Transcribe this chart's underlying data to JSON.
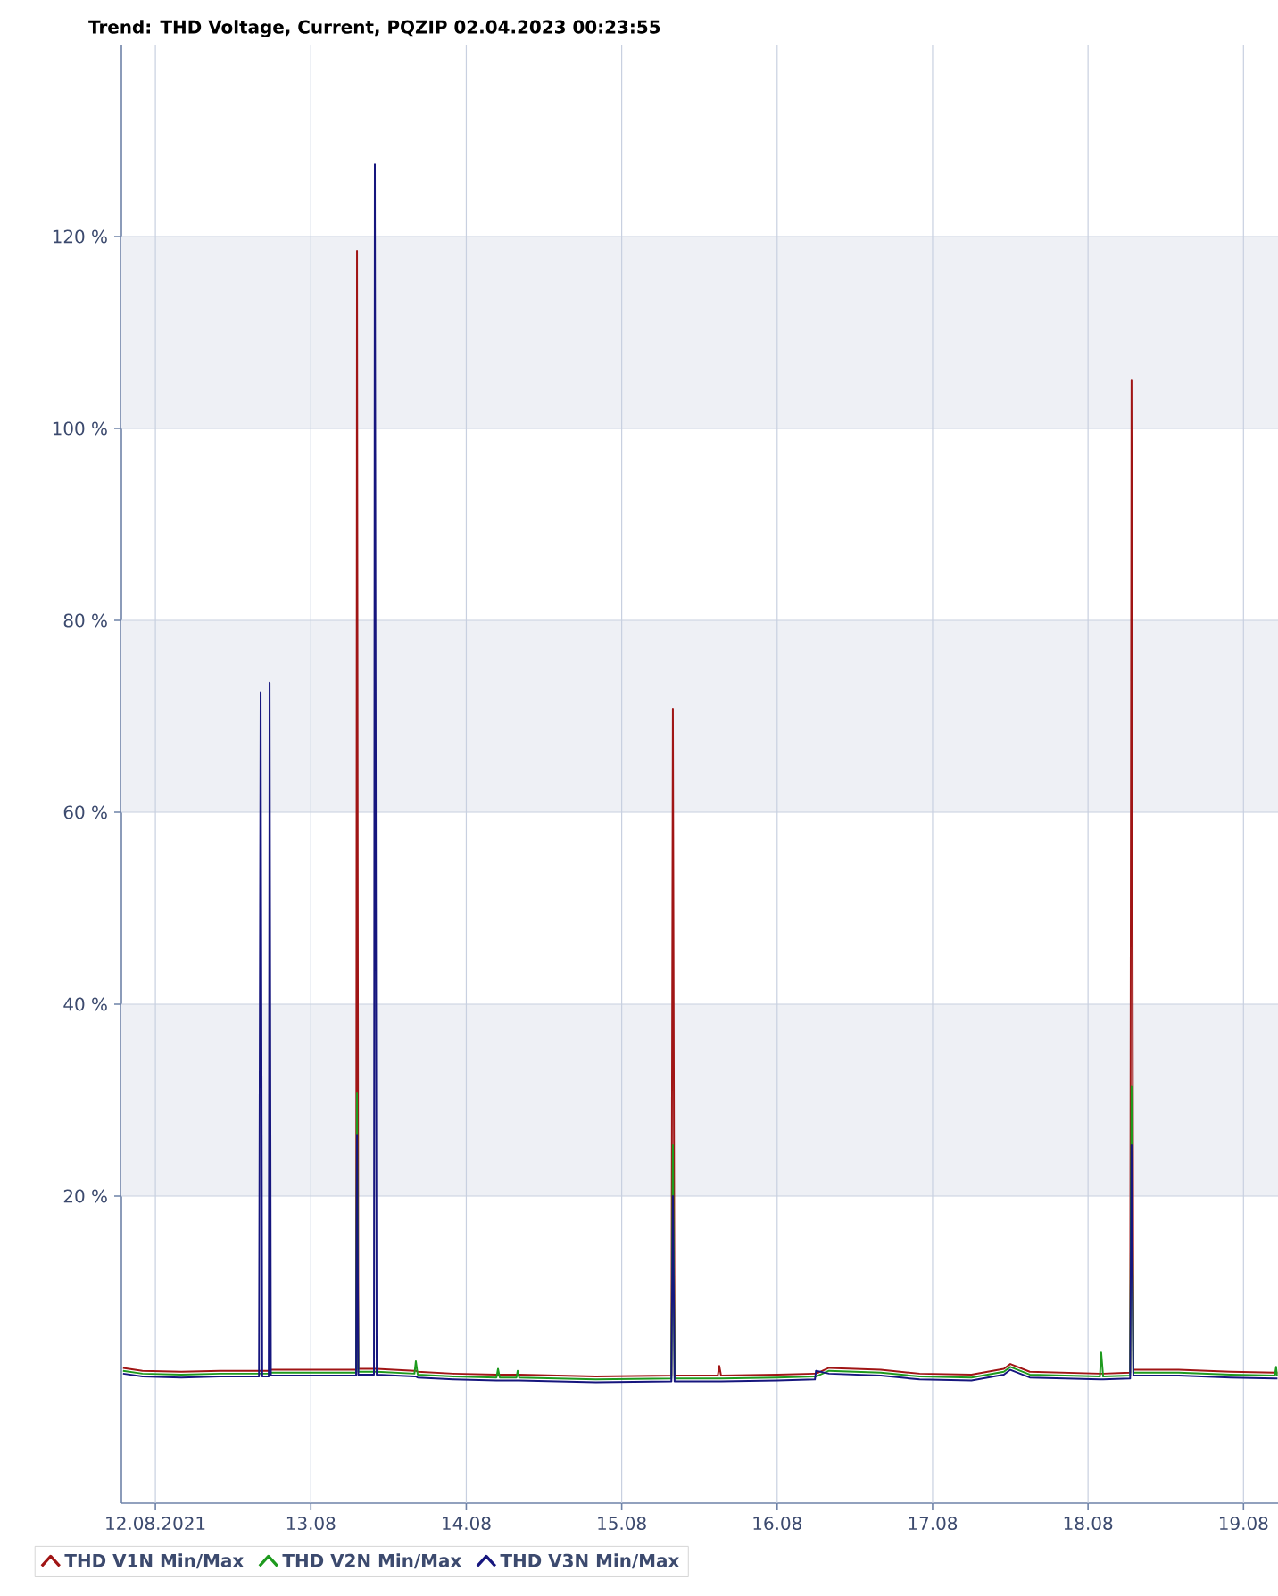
{
  "chart_data": {
    "type": "line",
    "title": "Trend: THD Voltage, Current, PQZIP 02.04.2023 00:23:55",
    "x": [
      "2021-08-11T19:00",
      "2021-08-11T22:00",
      "2021-08-12T04:00",
      "2021-08-12T10:00",
      "2021-08-12T16:00",
      "2021-08-12T16:15",
      "2021-08-12T16:30",
      "2021-08-12T17:30",
      "2021-08-12T17:38",
      "2021-08-12T17:50",
      "2021-08-13T04:00",
      "2021-08-13T07:00",
      "2021-08-13T07:08",
      "2021-08-13T07:20",
      "2021-08-13T09:45",
      "2021-08-13T09:53",
      "2021-08-13T10:10",
      "2021-08-13T16:00",
      "2021-08-13T16:13",
      "2021-08-13T16:30",
      "2021-08-13T22:00",
      "2021-08-14T04:40",
      "2021-08-14T04:54",
      "2021-08-14T05:10",
      "2021-08-14T07:45",
      "2021-08-14T07:56",
      "2021-08-14T08:10",
      "2021-08-14T20:00",
      "2021-08-15T07:40",
      "2021-08-15T07:54",
      "2021-08-15T08:10",
      "2021-08-15T14:50",
      "2021-08-15T15:04",
      "2021-08-15T15:20",
      "2021-08-16T00:00",
      "2021-08-16T05:50",
      "2021-08-16T06:00",
      "2021-08-16T08:00",
      "2021-08-16T16:00",
      "2021-08-16T22:00",
      "2021-08-17T06:00",
      "2021-08-17T11:00",
      "2021-08-17T12:00",
      "2021-08-17T15:00",
      "2021-08-18T01:50",
      "2021-08-18T02:02",
      "2021-08-18T02:20",
      "2021-08-18T06:30",
      "2021-08-18T06:43",
      "2021-08-18T07:00",
      "2021-08-18T14:00",
      "2021-08-18T22:00",
      "2021-08-19T04:50",
      "2021-08-19T05:02",
      "2021-08-19T05:10",
      "2021-08-19T05:15"
    ],
    "series": [
      {
        "name": "THD V1N Min/Max",
        "color": "#a01515",
        "values": [
          2.1,
          1.8,
          1.7,
          1.8,
          1.8,
          1.8,
          1.8,
          1.8,
          1.8,
          1.9,
          1.9,
          1.9,
          118.5,
          2.0,
          2.0,
          2.0,
          2.0,
          1.8,
          1.8,
          1.7,
          1.5,
          1.4,
          1.4,
          1.4,
          1.4,
          1.4,
          1.4,
          1.2,
          1.3,
          70.8,
          1.3,
          1.3,
          2.3,
          1.3,
          1.4,
          1.5,
          1.5,
          2.1,
          1.9,
          1.5,
          1.4,
          2.0,
          2.5,
          1.7,
          1.5,
          1.5,
          1.5,
          1.6,
          105,
          1.9,
          1.9,
          1.7,
          1.6,
          1.6,
          1.6,
          1.6
        ]
      },
      {
        "name": "THD V2N Min/Max",
        "color": "#1e9a1e",
        "values": [
          1.8,
          1.5,
          1.4,
          1.5,
          1.5,
          1.5,
          1.5,
          1.5,
          1.5,
          1.6,
          1.6,
          1.6,
          30.8,
          1.7,
          1.7,
          1.7,
          1.7,
          1.5,
          2.8,
          1.4,
          1.2,
          1.1,
          2.0,
          1.1,
          1.1,
          1.8,
          1.1,
          0.9,
          1.0,
          25.3,
          1.0,
          1.0,
          1.0,
          1.0,
          1.1,
          1.2,
          1.2,
          1.8,
          1.6,
          1.2,
          1.1,
          1.7,
          2.2,
          1.4,
          1.2,
          3.7,
          1.2,
          1.3,
          31.4,
          1.6,
          1.6,
          1.4,
          1.3,
          2.2,
          1.3,
          1.3
        ]
      },
      {
        "name": "THD V3N Min/Max",
        "color": "#16167e",
        "values": [
          1.5,
          1.2,
          1.1,
          1.2,
          1.2,
          72.5,
          1.2,
          1.2,
          73.5,
          1.3,
          1.3,
          1.3,
          26.4,
          1.4,
          1.4,
          127.5,
          1.4,
          1.2,
          1.2,
          1.1,
          0.9,
          0.8,
          0.8,
          0.8,
          0.8,
          0.8,
          0.8,
          0.6,
          0.7,
          20.0,
          0.7,
          0.7,
          0.7,
          0.7,
          0.8,
          0.9,
          1.8,
          1.5,
          1.3,
          0.9,
          0.8,
          1.4,
          1.9,
          1.1,
          0.9,
          0.9,
          0.9,
          1.0,
          25.3,
          1.3,
          1.3,
          1.1,
          1.0,
          1.0,
          1.0,
          1.0
        ]
      }
    ],
    "xlim": [
      "2021-08-11T18:45",
      "2021-08-19T05:20"
    ],
    "xticks": [
      {
        "value": "2021-08-12",
        "label": "12.08.2021"
      },
      {
        "value": "2021-08-13",
        "label": "13.08"
      },
      {
        "value": "2021-08-14",
        "label": "14.08"
      },
      {
        "value": "2021-08-15",
        "label": "15.08"
      },
      {
        "value": "2021-08-16",
        "label": "16.08"
      },
      {
        "value": "2021-08-17",
        "label": "17.08"
      },
      {
        "value": "2021-08-18",
        "label": "18.08"
      },
      {
        "value": "2021-08-19",
        "label": "19.08"
      }
    ],
    "ylim": [
      -12,
      140
    ],
    "yticks": [
      {
        "value": 20,
        "label": "20 %"
      },
      {
        "value": 40,
        "label": "40 %"
      },
      {
        "value": 60,
        "label": "60 %"
      },
      {
        "value": 80,
        "label": "80 %"
      },
      {
        "value": 100,
        "label": "100 %"
      },
      {
        "value": 120,
        "label": "120 %"
      }
    ],
    "bands": [
      {
        "axis": "y",
        "from": 20,
        "to": 40,
        "color": "#eef0f5"
      },
      {
        "axis": "y",
        "from": 60,
        "to": 80,
        "color": "#eef0f5"
      },
      {
        "axis": "y",
        "from": 100,
        "to": 120,
        "color": "#eef0f5"
      }
    ],
    "grid": true,
    "legend": "bottom",
    "line_style": "solid"
  }
}
